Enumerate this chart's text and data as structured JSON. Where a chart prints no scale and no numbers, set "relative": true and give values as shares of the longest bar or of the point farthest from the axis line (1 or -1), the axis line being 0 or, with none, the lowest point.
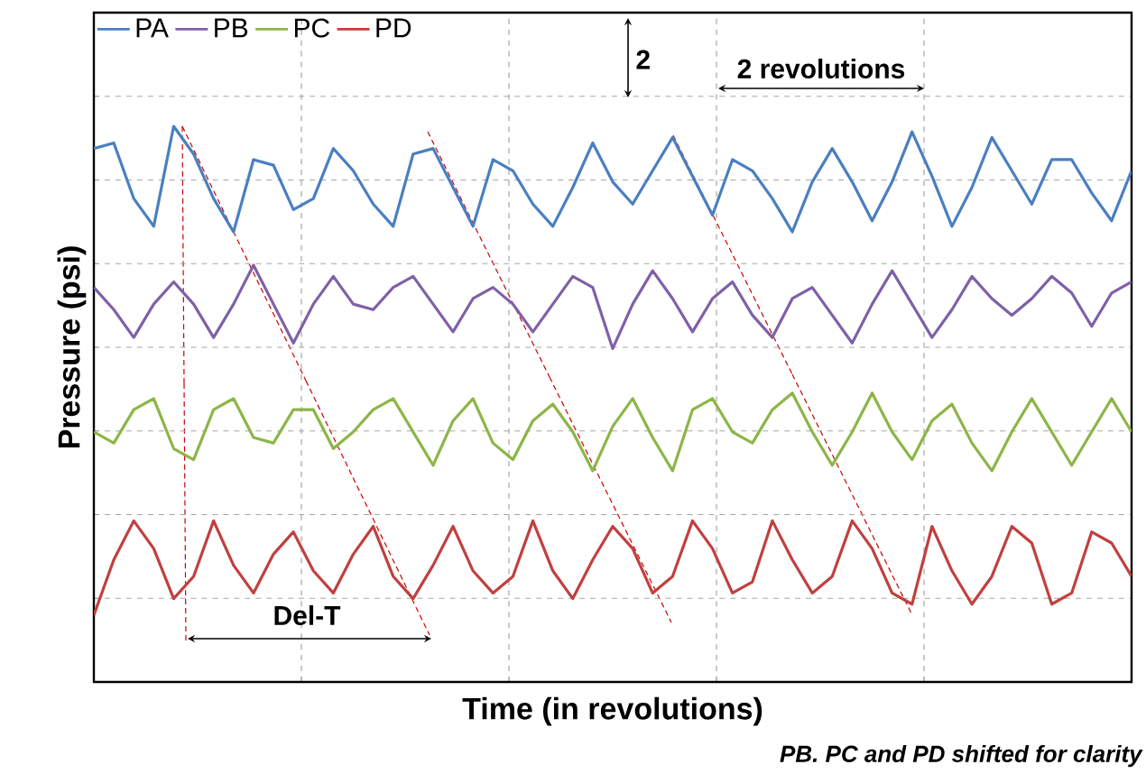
{
  "chart_data": {
    "type": "line",
    "relative": true,
    "xlabel": "Time (in revolutions)",
    "ylabel": "Pressure (psi)",
    "categories": [
      null,
      null,
      null,
      null,
      null,
      null,
      null,
      null,
      null,
      null,
      null,
      null,
      null,
      null,
      null,
      null,
      null,
      null,
      null,
      null,
      null,
      null,
      null,
      null,
      null,
      null,
      null,
      null,
      null,
      null,
      null,
      null,
      null,
      null,
      null,
      null,
      null,
      null,
      null,
      null,
      null,
      null,
      null,
      null,
      null,
      null,
      null,
      null,
      null,
      null,
      null,
      null,
      null
    ],
    "series": [
      {
        "name": "PA",
        "color": "#4a7fc1",
        "values": [
          0.96,
          0.97,
          0.87,
          0.82,
          1.0,
          0.95,
          0.87,
          0.81,
          0.94,
          0.93,
          0.85,
          0.87,
          0.96,
          0.92,
          0.86,
          0.82,
          0.95,
          0.96,
          0.89,
          0.82,
          0.94,
          0.92,
          0.86,
          0.82,
          0.89,
          0.97,
          0.9,
          0.86,
          0.92,
          0.98,
          0.91,
          0.84,
          0.94,
          0.92,
          0.87,
          0.81,
          0.9,
          0.96,
          0.9,
          0.83,
          0.9,
          0.99,
          0.91,
          0.82,
          0.89,
          0.98,
          0.92,
          0.86,
          0.94,
          0.94,
          0.88,
          0.83,
          0.92
        ]
      },
      {
        "name": "PB",
        "color": "#7f60a8",
        "values": [
          0.71,
          0.67,
          0.62,
          0.68,
          0.72,
          0.68,
          0.62,
          0.68,
          0.75,
          0.68,
          0.61,
          0.68,
          0.73,
          0.68,
          0.67,
          0.71,
          0.73,
          0.68,
          0.63,
          0.69,
          0.71,
          0.68,
          0.63,
          0.68,
          0.73,
          0.71,
          0.6,
          0.68,
          0.74,
          0.69,
          0.63,
          0.69,
          0.72,
          0.66,
          0.62,
          0.69,
          0.71,
          0.66,
          0.61,
          0.68,
          0.74,
          0.68,
          0.62,
          0.67,
          0.73,
          0.69,
          0.66,
          0.69,
          0.73,
          0.7,
          0.64,
          0.7,
          0.72
        ]
      },
      {
        "name": "PC",
        "color": "#8db548",
        "values": [
          0.45,
          0.43,
          0.49,
          0.51,
          0.42,
          0.4,
          0.49,
          0.51,
          0.44,
          0.43,
          0.49,
          0.49,
          0.42,
          0.45,
          0.49,
          0.51,
          0.45,
          0.39,
          0.47,
          0.51,
          0.43,
          0.4,
          0.47,
          0.5,
          0.45,
          0.38,
          0.46,
          0.51,
          0.44,
          0.38,
          0.49,
          0.51,
          0.45,
          0.43,
          0.49,
          0.52,
          0.45,
          0.39,
          0.45,
          0.52,
          0.45,
          0.4,
          0.47,
          0.5,
          0.43,
          0.38,
          0.45,
          0.51,
          0.45,
          0.39,
          0.45,
          0.51,
          0.45
        ]
      },
      {
        "name": "PD",
        "color": "#c0403f",
        "values": [
          0.12,
          0.22,
          0.29,
          0.24,
          0.15,
          0.19,
          0.29,
          0.21,
          0.16,
          0.23,
          0.27,
          0.2,
          0.16,
          0.23,
          0.28,
          0.19,
          0.15,
          0.21,
          0.28,
          0.2,
          0.16,
          0.19,
          0.29,
          0.2,
          0.15,
          0.22,
          0.28,
          0.24,
          0.16,
          0.19,
          0.29,
          0.24,
          0.16,
          0.18,
          0.29,
          0.22,
          0.16,
          0.19,
          0.29,
          0.24,
          0.16,
          0.14,
          0.28,
          0.2,
          0.14,
          0.19,
          0.28,
          0.25,
          0.14,
          0.16,
          0.27,
          0.25,
          0.19
        ]
      }
    ],
    "annotations": [
      "2",
      "2 revolutions",
      "Del-T",
      "PB. PC and PD shifted for clarity"
    ],
    "grid": true,
    "legend": "top left",
    "tick_labels": false
  }
}
